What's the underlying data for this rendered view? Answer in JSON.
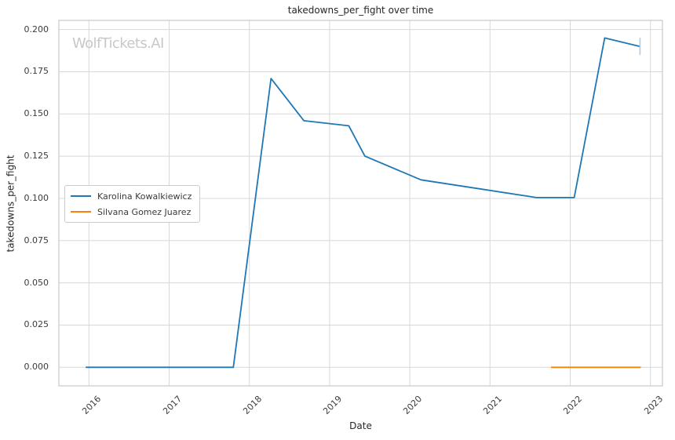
{
  "title": "takedowns_per_fight over time",
  "watermark": "WolfTickets.AI",
  "xlabel": "Date",
  "ylabel": "takedowns_per_fight",
  "colors": {
    "series_blue": "#1f77b4",
    "series_orange": "#ff7f0e",
    "grid": "#d8d8d8",
    "spine": "#c9c9c9",
    "tick_text": "#3b3b3b",
    "title_text": "#262626",
    "watermark_text": "#c8c8c8",
    "end_marker": "#a9cde6",
    "background": "#ffffff"
  },
  "legend": {
    "items": [
      {
        "label": "Karolina Kowalkiewicz",
        "color": "#1f77b4"
      },
      {
        "label": "Silvana Gomez Juarez",
        "color": "#ff7f0e"
      }
    ]
  },
  "chart_data": {
    "type": "line",
    "title": "takedowns_per_fight over time",
    "xlabel": "Date",
    "ylabel": "takedowns_per_fight",
    "grid": true,
    "legend_position": "center left",
    "xlim": [
      2015.625,
      2023.15
    ],
    "ylim": [
      -0.011,
      0.2054
    ],
    "x_ticks": [
      2016,
      2017,
      2018,
      2019,
      2020,
      2021,
      2022,
      2023
    ],
    "x_tick_labels": [
      "2016",
      "2017",
      "2018",
      "2019",
      "2020",
      "2021",
      "2022",
      "2023"
    ],
    "y_ticks": [
      0.0,
      0.025,
      0.05,
      0.075,
      0.1,
      0.125,
      0.15,
      0.175,
      0.2
    ],
    "y_tick_labels": [
      "0.000",
      "0.025",
      "0.050",
      "0.075",
      "0.100",
      "0.125",
      "0.150",
      "0.175",
      "0.200"
    ],
    "series": [
      {
        "name": "Karolina Kowalkiewicz",
        "color": "#1f77b4",
        "x": [
          2015.96,
          2017.8,
          2018.27,
          2018.68,
          2019.24,
          2019.44,
          2020.14,
          2021.58,
          2022.05,
          2022.43,
          2022.87
        ],
        "y": [
          0.0,
          0.0,
          0.171,
          0.146,
          0.143,
          0.125,
          0.111,
          0.1005,
          0.1005,
          0.195,
          0.19
        ],
        "end_marker": "vertical-tick"
      },
      {
        "name": "Silvana Gomez Juarez",
        "color": "#ff7f0e",
        "x": [
          2021.76,
          2022.88
        ],
        "y": [
          0.0,
          0.0
        ],
        "end_marker": null
      }
    ]
  }
}
